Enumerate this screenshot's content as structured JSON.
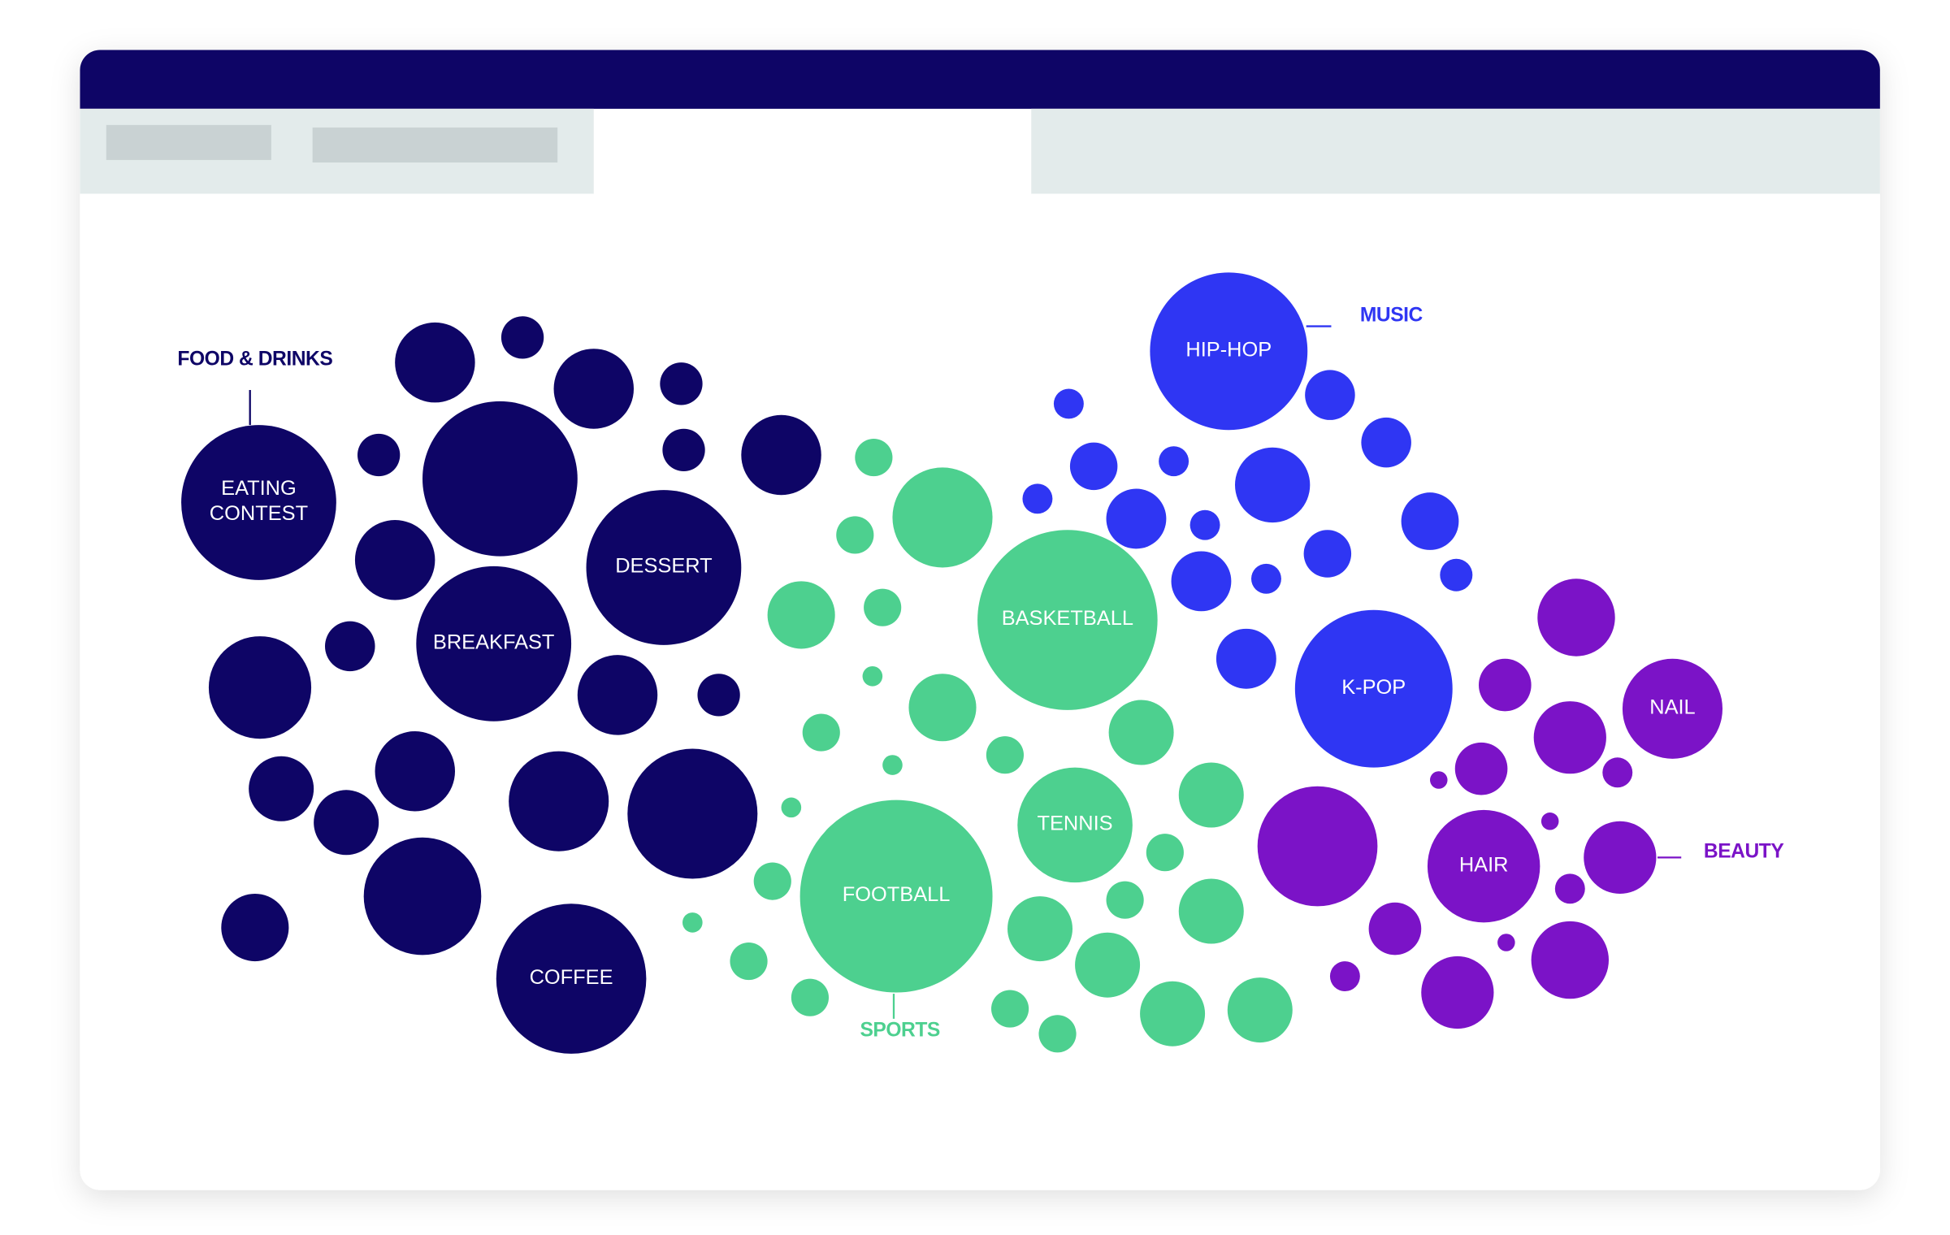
{
  "groups": [
    {
      "title": "FOOD & DRINKS",
      "bubbles": [
        "EATING CONTEST",
        "DESSERT",
        "BREAKFAST",
        "COFFEE"
      ]
    },
    {
      "title": "SPORTS",
      "bubbles": [
        "BASKETBALL",
        "TENNIS",
        "FOOTBALL"
      ]
    },
    {
      "title": "MUSIC",
      "bubbles": [
        "HIP-HOP",
        "K-POP"
      ]
    },
    {
      "title": "BEAUTY",
      "bubbles": [
        "NAIL",
        "HAIR"
      ]
    }
  ]
}
